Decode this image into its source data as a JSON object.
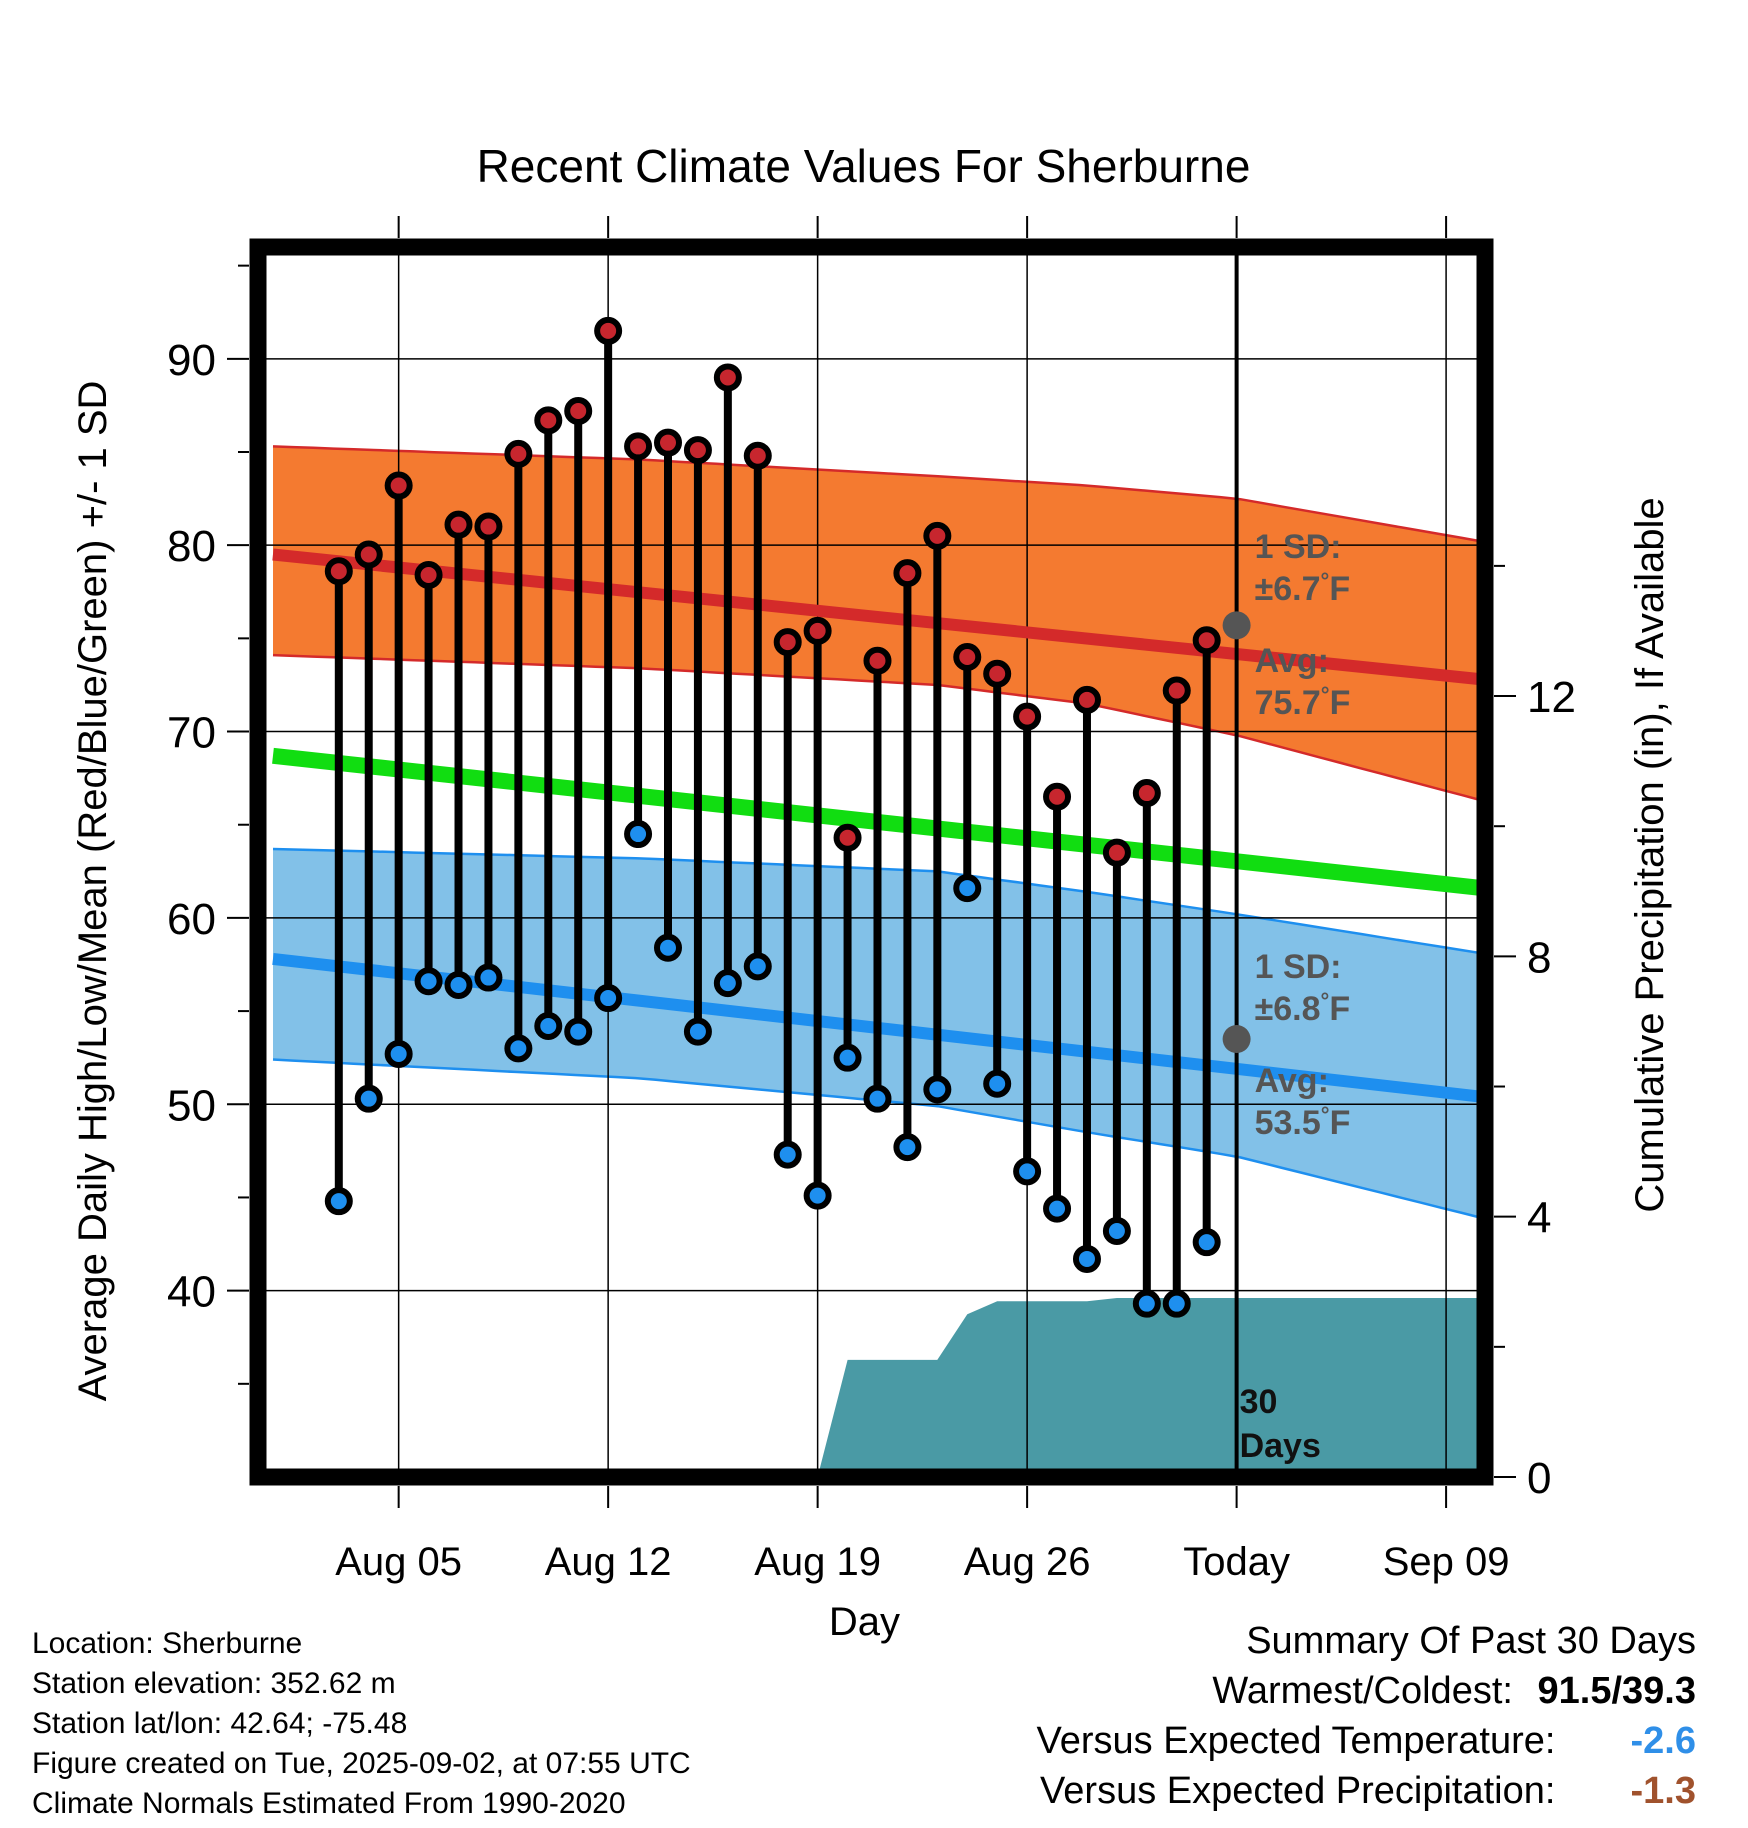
{
  "chart_data": {
    "type": "line",
    "title": "Recent Climate Values For Sherburne",
    "xlabel": "Day",
    "ylabel": "Average Daily High/Low/Mean (Red/Blue/Green) +/- 1 SD",
    "y2label": "Cumulative Precipitation (in), If Available",
    "ylim": [
      30,
      96
    ],
    "y2lim": [
      0,
      18.9
    ],
    "yticks": [
      40,
      50,
      60,
      70,
      80,
      90
    ],
    "y2ticks": [
      0,
      4,
      8,
      12
    ],
    "xticks": [
      "Aug 05",
      "Aug 12",
      "Aug 19",
      "Aug 26",
      "Today",
      "Sep 09"
    ],
    "grid": true,
    "x_range_days": [
      -32.7,
      8.3
    ],
    "xtick_days": [
      -28,
      -21,
      -14,
      -7,
      0,
      7
    ],
    "days": [
      -30,
      -29,
      -28,
      -27,
      -26,
      -25,
      -24,
      -23,
      -22,
      -21,
      -20,
      -19,
      -18,
      -17,
      -16,
      -15,
      -14,
      -13,
      -12,
      -11,
      -10,
      -9,
      -8,
      -7,
      -6,
      -5,
      -4,
      -3,
      -2,
      -1
    ],
    "series": [
      {
        "name": "Daily High",
        "color": "#c7262e",
        "values": [
          78.6,
          79.5,
          83.2,
          78.4,
          81.1,
          81.0,
          84.9,
          86.7,
          87.2,
          91.5,
          85.3,
          85.5,
          85.1,
          89.0,
          84.8,
          74.8,
          75.4,
          64.3,
          73.8,
          78.5,
          80.5,
          74.0,
          73.1,
          70.8,
          66.5,
          71.7,
          63.5,
          66.7,
          72.2,
          74.9
        ]
      },
      {
        "name": "Daily Low",
        "color": "#1e8fef",
        "values": [
          44.8,
          50.3,
          52.7,
          56.6,
          56.4,
          56.8,
          53.0,
          54.2,
          53.9,
          55.7,
          64.5,
          58.4,
          53.9,
          56.5,
          57.4,
          47.3,
          45.1,
          52.5,
          50.3,
          47.7,
          50.8,
          61.6,
          51.1,
          46.4,
          44.4,
          41.7,
          43.2,
          39.3,
          39.3,
          42.6
        ]
      },
      {
        "name": "Normal High",
        "color": "#d42a2a",
        "x": [
          -32.2,
          8.2
        ],
        "values": [
          79.5,
          72.8
        ]
      },
      {
        "name": "Normal Low",
        "color": "#1e8fef",
        "x": [
          -32.2,
          8.2
        ],
        "values": [
          57.8,
          50.4
        ]
      },
      {
        "name": "Normal Mean",
        "color": "#11dd11",
        "x": [
          -32.2,
          8.2
        ],
        "values": [
          68.7,
          61.6
        ]
      },
      {
        "name": "Cumulative Precipitation",
        "color": "#4a9aa5",
        "x": [
          -14,
          -13,
          -12,
          -11,
          -10,
          -9,
          -8,
          -7,
          -6,
          -5,
          -4,
          -3,
          -2,
          -1,
          0,
          8.2
        ],
        "values": [
          0,
          1.8,
          1.8,
          1.8,
          1.8,
          2.5,
          2.7,
          2.7,
          2.7,
          2.7,
          2.75,
          2.75,
          2.75,
          2.75,
          2.75,
          2.75
        ]
      }
    ],
    "bands": {
      "high": {
        "fill": "#f47a30",
        "edge": "#d42a2a",
        "upper": [
          [
            -32.2,
            85.3
          ],
          [
            -20,
            84.6
          ],
          [
            -10,
            83.7
          ],
          [
            -5,
            83.2
          ],
          [
            0,
            82.5
          ],
          [
            8.2,
            80.2
          ]
        ],
        "lower": [
          [
            -32.2,
            74.1
          ],
          [
            -20,
            73.4
          ],
          [
            -10,
            72.5
          ],
          [
            -5,
            71.5
          ],
          [
            0,
            69.8
          ],
          [
            8.2,
            66.3
          ]
        ]
      },
      "low": {
        "fill": "#82c1e8",
        "edge": "#1e8fef",
        "upper": [
          [
            -32.2,
            63.7
          ],
          [
            -20,
            63.2
          ],
          [
            -10,
            62.5
          ],
          [
            -5,
            61.4
          ],
          [
            0,
            60.2
          ],
          [
            8.2,
            58.1
          ]
        ],
        "lower": [
          [
            -32.2,
            52.4
          ],
          [
            -20,
            51.4
          ],
          [
            -10,
            49.9
          ],
          [
            -5,
            48.5
          ],
          [
            0,
            47.2
          ],
          [
            8.2,
            43.9
          ]
        ]
      }
    },
    "annotations": [
      {
        "label_1": "1 SD:",
        "label_2": "±6.7",
        "unit": "°F"
      },
      {
        "label_1": "Avg:",
        "label_2": "75.7",
        "unit": "°F",
        "value": 75.7
      },
      {
        "label_1": "1 SD:",
        "label_2": "±6.8",
        "unit": "°F"
      },
      {
        "label_1": "Avg:",
        "label_2": "53.5",
        "unit": "°F",
        "value": 53.5
      }
    ],
    "window_label": [
      "30",
      "Days"
    ]
  },
  "info": {
    "location": "Location: Sherburne",
    "elevation": "Station elevation: 352.62 m",
    "latlon": "Station lat/lon: 42.64; -75.48",
    "created": "Figure created on Tue, 2025-09-02, at 07:55 UTC",
    "normals": "Climate Normals Estimated From 1990-2020"
  },
  "summary": {
    "title": "Summary Of Past 30 Days",
    "warm_cold_label": "Warmest/Coldest:",
    "warm_cold_value": "91.5/39.3",
    "temp_label": "Versus Expected Temperature:",
    "temp_value": "-2.6",
    "temp_color": "#2f8fe8",
    "precip_label": "Versus Expected Precipitation:",
    "precip_value": "-1.3",
    "precip_color": "#a0522d"
  }
}
